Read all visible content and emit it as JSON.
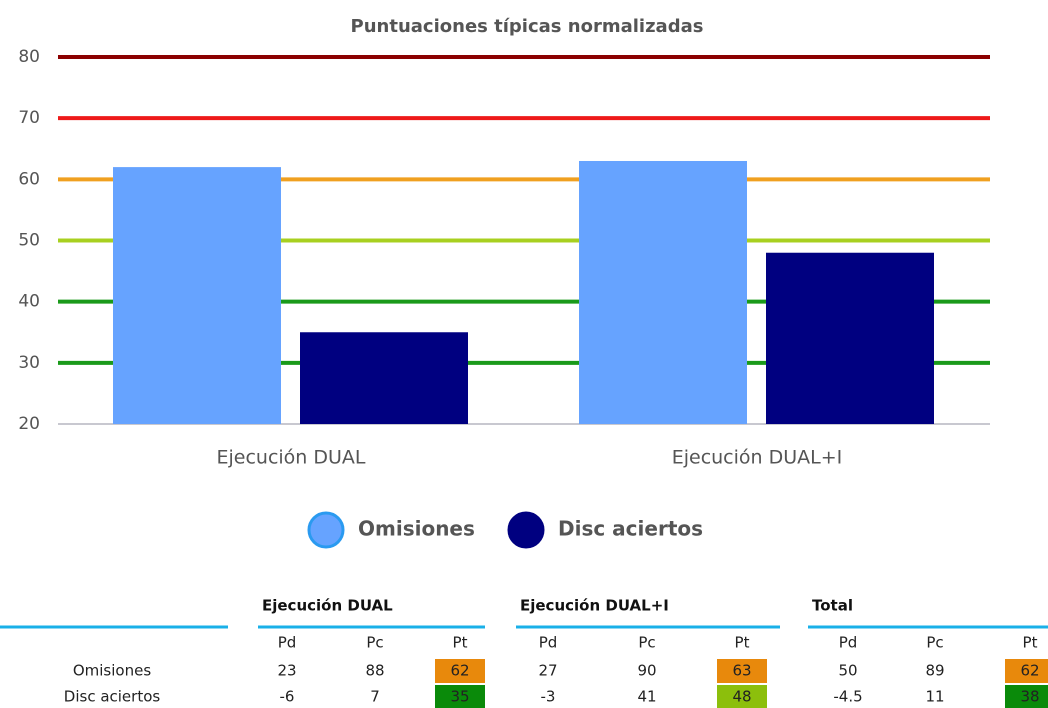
{
  "chart_data": {
    "type": "bar",
    "title": "Puntuaciones típicas normalizadas",
    "categories": [
      "Ejecución DUAL",
      "Ejecución DUAL+I"
    ],
    "series": [
      {
        "name": "Omisiones",
        "color": "#66a3ff",
        "values": [
          62,
          63
        ]
      },
      {
        "name": "Disc aciertos",
        "color": "#000080",
        "values": [
          35,
          48
        ]
      }
    ],
    "ylim": [
      20,
      80
    ],
    "yticks": [
      20,
      30,
      40,
      50,
      60,
      70,
      80
    ],
    "grid": true,
    "grid_colors": [
      "#c8c8d0",
      "#1a9a1a",
      "#1a9a1a",
      "#a8d020",
      "#f0a020",
      "#ee1a1a",
      "#8b0000"
    ],
    "legend": "bottom"
  },
  "table": {
    "groups": [
      "Ejecución DUAL",
      "Ejecución DUAL+I",
      "Total"
    ],
    "columns": [
      "Pd",
      "Pc",
      "Pt",
      "Pd",
      "Pc",
      "Pt",
      "Pd",
      "Pc",
      "Pt"
    ],
    "rows": [
      {
        "label": "Omisiones",
        "cells": [
          23,
          88,
          62,
          27,
          90,
          63,
          50,
          89,
          62
        ],
        "pt_colors": [
          "#e8890c",
          "#e8890c",
          "#e8890c"
        ]
      },
      {
        "label": "Disc aciertos",
        "cells": [
          -6,
          7,
          35,
          -3,
          41,
          48,
          -4.5,
          11,
          38
        ],
        "pt_colors": [
          "#0a8a0a",
          "#8cbf0c",
          "#0a8a0a"
        ]
      }
    ],
    "rule_color": "#1ab0e8"
  }
}
